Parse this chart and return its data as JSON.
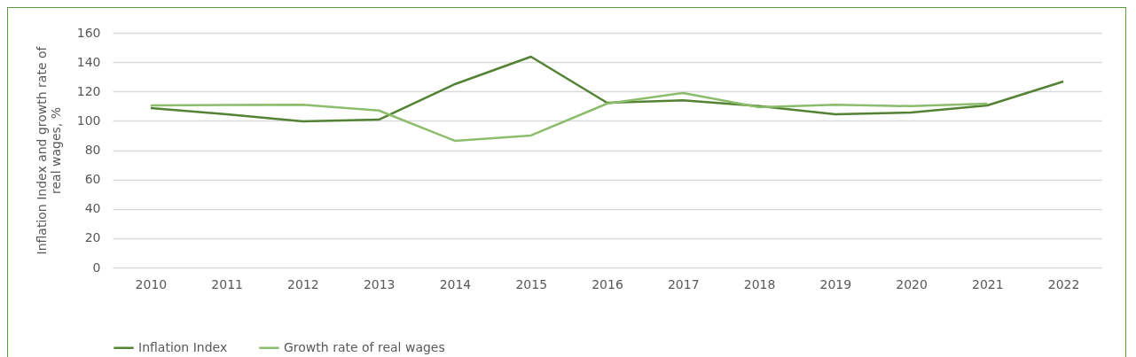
{
  "chart_data": {
    "type": "line",
    "ylabel": "Inflation Index and growth rate of real wages, %",
    "categories": [
      "2010",
      "2011",
      "2012",
      "2013",
      "2014",
      "2015",
      "2016",
      "2017",
      "2018",
      "2019",
      "2020",
      "2021",
      "2022"
    ],
    "series": [
      {
        "name": "Inflation Index",
        "color": "#548235",
        "values": [
          108.7,
          104.5,
          99.6,
          100.8,
          125,
          143.7,
          112.3,
          114,
          110,
          104.5,
          105.7,
          110.5,
          126.8
        ]
      },
      {
        "name": "Growth rate of real wages",
        "color": "#8cbd6c",
        "values": [
          110.5,
          110.8,
          111,
          107,
          86.4,
          90,
          111.7,
          119,
          109.3,
          111,
          110,
          111.7,
          null
        ]
      }
    ],
    "ylim": [
      0,
      160
    ],
    "yticks": [
      0,
      20,
      40,
      60,
      80,
      100,
      120,
      140,
      160
    ],
    "grid": "y",
    "legend": "bottom",
    "marker": "none",
    "line_style": "solid"
  }
}
